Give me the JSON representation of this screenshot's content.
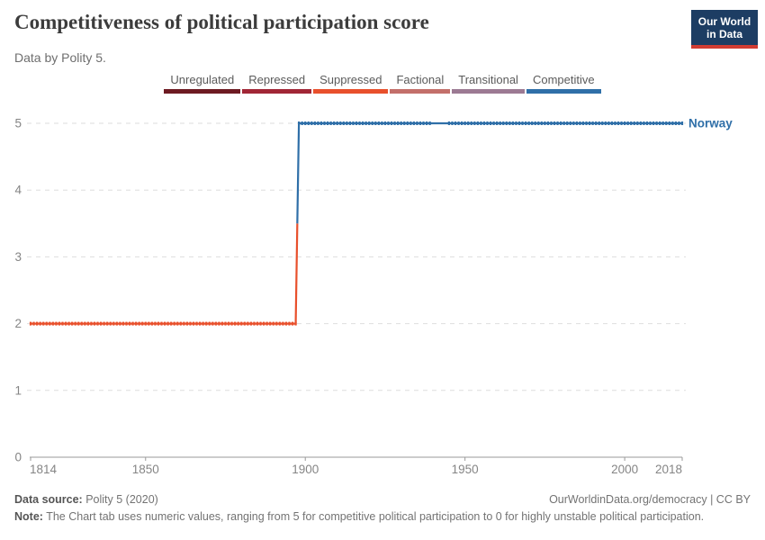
{
  "header": {
    "title": "Competitiveness of political participation score",
    "subtitle": "Data by Polity 5.",
    "logo": {
      "line1": "Our World",
      "line2": "in Data"
    }
  },
  "legend": {
    "items": [
      {
        "label": "Unregulated",
        "color": "#6d1a22"
      },
      {
        "label": "Repressed",
        "color": "#a12636"
      },
      {
        "label": "Suppressed",
        "color": "#e8502c"
      },
      {
        "label": "Factional",
        "color": "#c36f6a"
      },
      {
        "label": "Transitional",
        "color": "#9c7a93"
      },
      {
        "label": "Competitive",
        "color": "#2f6fa8"
      }
    ]
  },
  "chart_data": {
    "type": "line",
    "title": "Competitiveness of political participation score",
    "subtitle": "Data by Polity 5.",
    "entity": "Norway",
    "x_range": [
      1814,
      2018
    ],
    "x_ticks": [
      1814,
      1850,
      1900,
      1950,
      2000,
      2018
    ],
    "y_range": [
      0,
      5
    ],
    "y_ticks": [
      0,
      1,
      2,
      3,
      4,
      5
    ],
    "grid": true,
    "legend_position": "top-center",
    "series": [
      {
        "name": "Norway",
        "label_color": "#2f6fa8",
        "segments": [
          {
            "start_year": 1814,
            "end_year": 1897,
            "value": 2,
            "category": "Suppressed",
            "color": "#e8502c"
          },
          {
            "start_year": 1898,
            "end_year": 2018,
            "value": 5,
            "category": "Competitive",
            "color": "#2f6fa8"
          }
        ],
        "unmarked_years": [
          1940,
          1941,
          1942,
          1943,
          1944
        ]
      }
    ]
  },
  "footer": {
    "source_label": "Data source:",
    "source_value": "Polity 5 (2020)",
    "link": "OurWorldinData.org/democracy | CC BY",
    "note_label": "Note:",
    "note_text": "The Chart tab uses numeric values, ranging from 5 for competitive political participation to 0 for highly unstable political participation."
  }
}
